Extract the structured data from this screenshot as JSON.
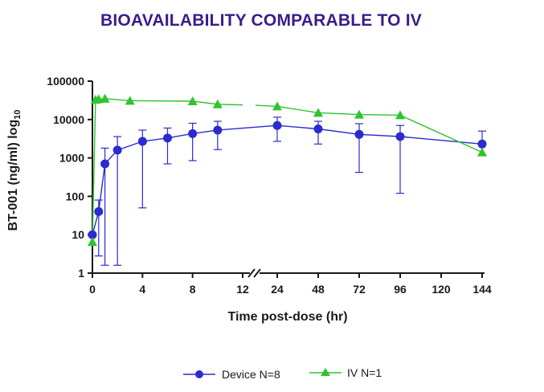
{
  "chart_data": {
    "type": "line",
    "title": "BIOAVAILABILITY COMPARABLE TO IV",
    "xlabel": "Time post-dose (hr)",
    "ylabel": "BT-001 (ng/ml) log",
    "ylabel_subscript": "10",
    "y_scale": "log",
    "ylim": [
      1,
      100000
    ],
    "y_ticks": [
      1,
      10,
      100,
      1000,
      10000,
      100000
    ],
    "y_tick_labels": [
      "1",
      "10",
      "100",
      "1000",
      "10000",
      "100000"
    ],
    "x_segments": [
      {
        "range": [
          0,
          12
        ],
        "ticks": [
          0,
          4,
          8,
          12
        ],
        "tick_labels": [
          "0",
          "4",
          "8",
          "12"
        ]
      },
      {
        "range": [
          12,
          144
        ],
        "ticks": [
          24,
          48,
          72,
          96,
          120,
          144
        ],
        "tick_labels": [
          "24",
          "48",
          "72",
          "96",
          "120",
          "144"
        ]
      }
    ],
    "axis_break": "between 12 and 24 hr",
    "series": [
      {
        "name": "Device N=8",
        "color": "#2b2bd0",
        "marker": "circle",
        "x": [
          0,
          0.5,
          1,
          2,
          4,
          6,
          8,
          10,
          24,
          48,
          72,
          96,
          144
        ],
        "y": [
          10,
          40,
          700,
          1600,
          2700,
          3300,
          4300,
          5300,
          7000,
          5700,
          4100,
          3600,
          2300
        ],
        "y_upper": [
          10,
          80,
          1800,
          3600,
          5300,
          6000,
          8000,
          9000,
          11500,
          9000,
          7800,
          7000,
          5000
        ],
        "y_lower": [
          10,
          2.8,
          1.6,
          1.6,
          50,
          700,
          850,
          1650,
          2700,
          2300,
          420,
          120,
          2300
        ]
      },
      {
        "name": "IV N=1",
        "color": "#2fc32f",
        "marker": "triangle",
        "x": [
          0,
          0.25,
          0.5,
          1,
          3,
          8,
          10,
          24,
          48,
          72,
          96,
          144
        ],
        "y": [
          6.5,
          33000,
          34000,
          35000,
          31000,
          30000,
          25000,
          22000,
          15000,
          13500,
          13000,
          1400
        ]
      }
    ],
    "legend_position": "bottom-center"
  }
}
